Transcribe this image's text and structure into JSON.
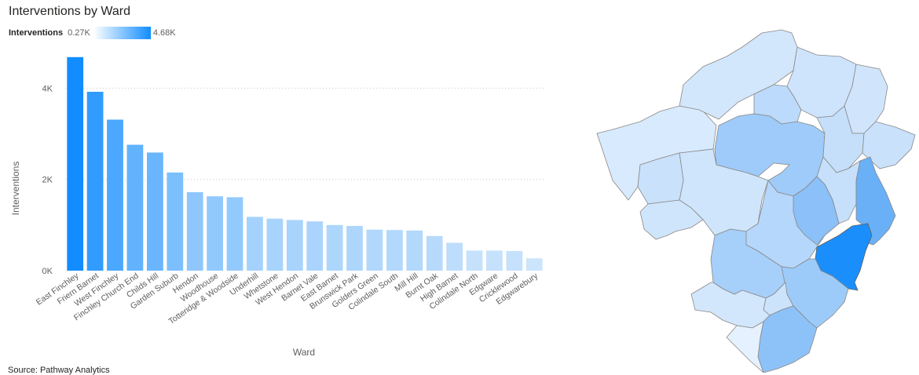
{
  "chart_title": "Interventions by Ward",
  "legend": {
    "title": "Interventions",
    "min_label": "0.27K",
    "max_label": "4.68K",
    "min_color": "#ffffff",
    "max_color": "#118dff"
  },
  "source_text": "Source: Pathway Analytics",
  "chart_data": {
    "type": "bar",
    "title": "Interventions by Ward",
    "xlabel": "Ward",
    "ylabel": "Interventions",
    "ylim": [
      0,
      4900
    ],
    "yticks": [
      0,
      2000,
      4000
    ],
    "ytick_labels": [
      "0K",
      "2K",
      "4K"
    ],
    "grid": true,
    "categories": [
      "East Finchley",
      "Friern Barnet",
      "West Finchley",
      "Finchley Church End",
      "Childs Hill",
      "Garden Suburb",
      "Hendon",
      "Woodhouse",
      "Totteridge & Woodside",
      "Underhill",
      "Whetstone",
      "West Hendon",
      "Barnet Vale",
      "East Barnet",
      "Brunswick Park",
      "Golders Green",
      "Colindale South",
      "Mill Hill",
      "Burnt Oak",
      "High Barnet",
      "Colindale North",
      "Edgware",
      "Cricklewood",
      "Edgwarebury"
    ],
    "values": [
      4680,
      3920,
      3310,
      2760,
      2590,
      2150,
      1720,
      1630,
      1610,
      1180,
      1140,
      1110,
      1080,
      1000,
      980,
      900,
      890,
      880,
      760,
      610,
      440,
      440,
      430,
      270
    ]
  }
}
